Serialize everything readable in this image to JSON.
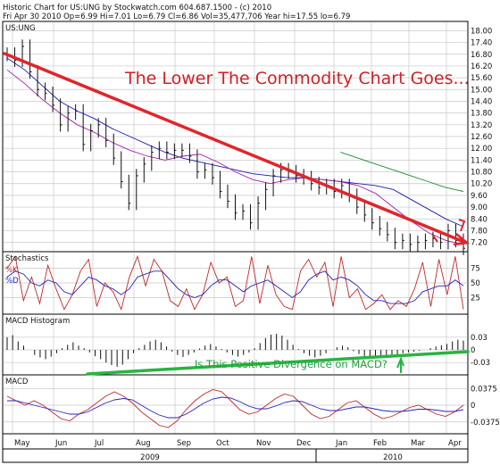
{
  "header": {
    "line1": "Historic Chart for US:UNG by Stockwatch.com 604.687.1500 - (c) 2010",
    "line2": "Fri Apr 30 2010   Op=6.99  Hi=7.01  Lo=6.79  Cl=6.86  Vol=35,477,706  Year hi=17.55  lo=6.79"
  },
  "chart_data": [
    {
      "type": "candlestick",
      "title": "US:UNG",
      "y_ticks": [
        "18.00",
        "17.40",
        "16.80",
        "16.20",
        "15.60",
        "15.00",
        "14.40",
        "13.80",
        "13.20",
        "12.60",
        "12.00",
        "11.40",
        "10.80",
        "10.20",
        "9.60",
        "9.00",
        "8.40",
        "7.80",
        "7.20"
      ],
      "ylim": [
        7.0,
        18.2
      ],
      "x_months": [
        "May",
        "Jun",
        "Jul",
        "Aug",
        "Sep",
        "Oct",
        "Nov",
        "Dec",
        "Jan",
        "Feb",
        "Mar",
        "Apr"
      ],
      "x_years": [
        "2009",
        "2010"
      ],
      "grid": true,
      "moving_averages": [
        {
          "color": "#1a1ab0",
          "values": [
            16.6,
            16.0,
            15.2,
            14.4,
            13.9,
            13.5,
            13.0,
            12.6,
            12.2,
            11.8,
            11.5,
            11.3,
            11.1,
            10.9,
            10.7,
            10.6,
            10.5,
            10.5,
            10.4,
            10.3,
            10.2,
            10.1,
            9.9,
            9.4,
            8.9,
            8.4,
            8.0
          ]
        },
        {
          "color": "#a020a0",
          "values": [
            16.0,
            15.3,
            14.5,
            13.8,
            13.2,
            12.8,
            12.3,
            11.9,
            11.6,
            11.4,
            11.6,
            11.7,
            11.3,
            10.8,
            10.4,
            10.2,
            10.4,
            10.5,
            10.4,
            10.3,
            10.1,
            9.7,
            9.0,
            8.3,
            7.7,
            7.3,
            7.1
          ]
        },
        {
          "color": "#1e8a2a",
          "values": [
            null,
            null,
            null,
            null,
            null,
            null,
            null,
            null,
            null,
            null,
            null,
            null,
            null,
            null,
            null,
            null,
            null,
            null,
            null,
            11.8,
            11.5,
            11.2,
            10.9,
            10.6,
            10.3,
            10.0,
            9.8
          ]
        }
      ],
      "candle_close": [
        16.8,
        16.5,
        17.2,
        15.9,
        15.0,
        14.8,
        14.2,
        13.2,
        13.8,
        13.9,
        12.2,
        12.9,
        13.2,
        12.4,
        11.5,
        10.3,
        9.2,
        10.6,
        11.2,
        11.8,
        12.0,
        11.8,
        11.9,
        11.9,
        11.6,
        10.8,
        10.9,
        10.5,
        9.8,
        9.3,
        8.7,
        8.8,
        8.2,
        9.2,
        9.9,
        10.6,
        10.9,
        10.8,
        10.6,
        10.5,
        10.2,
        10.0,
        10.1,
        9.8,
        10.1,
        9.6,
        9.0,
        8.6,
        8.2,
        7.9,
        7.6,
        7.2,
        7.3,
        7.1,
        7.2,
        7.3,
        7.4,
        7.2,
        7.8,
        7.3,
        6.9
      ],
      "annotations": [
        {
          "text": "The Lower The Commodity Chart Goes...",
          "color": "#d21f26"
        }
      ]
    },
    {
      "type": "line",
      "title": "Stochastics",
      "legend": [
        "%K",
        "%D"
      ],
      "y_ticks": [
        "75",
        "50",
        "25"
      ],
      "ylim": [
        0,
        100
      ],
      "series": [
        {
          "name": "%K",
          "color": "#c0282a",
          "values": [
            75,
            95,
            20,
            60,
            15,
            80,
            40,
            5,
            30,
            70,
            90,
            10,
            50,
            35,
            5,
            60,
            95,
            45,
            90,
            70,
            20,
            10,
            40,
            5,
            30,
            85,
            50,
            60,
            10,
            20,
            95,
            15,
            80,
            30,
            10,
            5,
            70,
            90,
            60,
            85,
            10,
            95,
            25,
            40,
            5,
            15,
            30,
            5,
            20,
            10,
            40,
            85,
            10,
            90,
            30,
            95,
            5
          ]
        },
        {
          "name": "%D",
          "color": "#2424b8",
          "values": [
            60,
            70,
            65,
            50,
            45,
            55,
            50,
            35,
            30,
            45,
            60,
            55,
            45,
            40,
            30,
            40,
            60,
            65,
            70,
            70,
            55,
            40,
            30,
            25,
            30,
            45,
            55,
            55,
            45,
            35,
            45,
            50,
            55,
            45,
            35,
            25,
            35,
            55,
            65,
            70,
            55,
            60,
            55,
            45,
            30,
            20,
            20,
            15,
            15,
            15,
            20,
            35,
            40,
            45,
            45,
            55,
            45
          ]
        }
      ]
    },
    {
      "type": "bar",
      "title": "MACD Histogram",
      "y_ticks": [
        "0.03",
        "0",
        "-0.03"
      ],
      "ylim": [
        -0.055,
        0.055
      ],
      "values": [
        0.03,
        0.035,
        0.02,
        0.01,
        0.0,
        -0.012,
        -0.018,
        -0.022,
        -0.016,
        -0.008,
        0.004,
        0.012,
        0.018,
        0.01,
        0.004,
        -0.006,
        -0.015,
        -0.022,
        -0.03,
        -0.036,
        -0.04,
        -0.035,
        -0.022,
        -0.008,
        0.004,
        0.012,
        0.02,
        0.024,
        0.018,
        0.008,
        -0.004,
        -0.012,
        -0.017,
        -0.012,
        -0.006,
        0.003,
        0.01,
        0.014,
        0.008,
        0.002,
        -0.006,
        -0.012,
        -0.016,
        -0.012,
        -0.006,
        0.004,
        0.016,
        0.028,
        0.036,
        0.038,
        0.034,
        0.024,
        0.012,
        0.002,
        -0.008,
        -0.014,
        -0.018,
        -0.014,
        -0.008,
        0.0,
        0.006,
        0.01,
        0.006,
        -0.003,
        -0.01,
        -0.015,
        -0.018,
        -0.019,
        -0.018,
        -0.016,
        -0.014,
        -0.011,
        -0.008,
        -0.006,
        -0.004,
        -0.002,
        0.0,
        0.004,
        0.008,
        0.011,
        0.014,
        0.02,
        0.024,
        0.022
      ],
      "annotations": [
        {
          "text": "Is This Positive Divergence on MACD?",
          "color": "#1e9e3a"
        }
      ]
    },
    {
      "type": "line",
      "title": "MACD",
      "y_ticks": [
        "0.0375",
        "0",
        "-0.0375"
      ],
      "ylim": [
        -0.06,
        0.06
      ],
      "series": [
        {
          "color": "#c0282a",
          "values": [
            0.02,
            0.01,
            0.0,
            0.01,
            0.0,
            -0.015,
            -0.03,
            -0.035,
            -0.02,
            -0.01,
            0.005,
            0.02,
            0.03,
            0.02,
            0.005,
            -0.015,
            -0.03,
            -0.045,
            -0.05,
            -0.035,
            -0.01,
            0.01,
            0.025,
            0.035,
            0.03,
            0.01,
            -0.01,
            -0.02,
            -0.015,
            0.0,
            0.015,
            0.025,
            0.02,
            0.0,
            -0.02,
            -0.03,
            -0.025,
            -0.01,
            0.005,
            0.01,
            -0.005,
            -0.02,
            -0.03,
            -0.025,
            -0.015,
            -0.005,
            0.0,
            -0.01,
            -0.02,
            -0.025,
            -0.015,
            0.0
          ]
        },
        {
          "color": "#2424b8",
          "values": [
            0.01,
            0.01,
            0.005,
            0.0,
            -0.005,
            -0.01,
            -0.015,
            -0.02,
            -0.02,
            -0.015,
            -0.005,
            0.005,
            0.012,
            0.015,
            0.012,
            0.0,
            -0.012,
            -0.022,
            -0.028,
            -0.028,
            -0.02,
            -0.008,
            0.005,
            0.014,
            0.018,
            0.016,
            0.008,
            -0.002,
            -0.008,
            -0.008,
            -0.002,
            0.006,
            0.01,
            0.008,
            0.0,
            -0.008,
            -0.012,
            -0.012,
            -0.008,
            -0.004,
            -0.004,
            -0.008,
            -0.012,
            -0.014,
            -0.014,
            -0.012,
            -0.009,
            -0.009,
            -0.011,
            -0.014,
            -0.014,
            -0.01
          ]
        }
      ]
    }
  ]
}
